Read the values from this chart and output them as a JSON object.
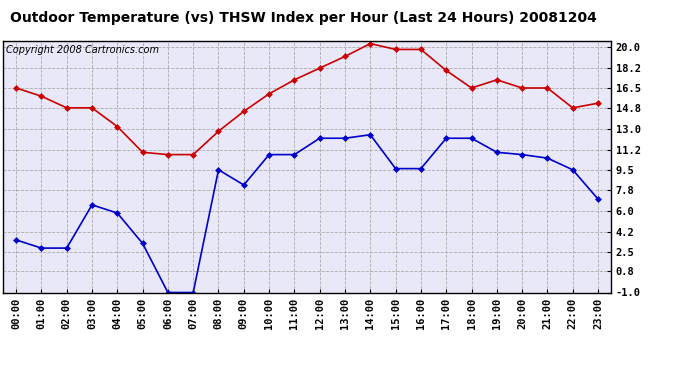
{
  "title": "Outdoor Temperature (vs) THSW Index per Hour (Last 24 Hours) 20081204",
  "copyright": "Copyright 2008 Cartronics.com",
  "hours": [
    "00:00",
    "01:00",
    "02:00",
    "03:00",
    "04:00",
    "05:00",
    "06:00",
    "07:00",
    "08:00",
    "09:00",
    "10:00",
    "11:00",
    "12:00",
    "13:00",
    "14:00",
    "15:00",
    "16:00",
    "17:00",
    "18:00",
    "19:00",
    "20:00",
    "21:00",
    "22:00",
    "23:00"
  ],
  "temp": [
    3.5,
    2.8,
    2.8,
    6.5,
    5.8,
    3.2,
    -1.0,
    -1.0,
    9.5,
    8.2,
    10.8,
    10.8,
    12.2,
    12.2,
    12.5,
    9.6,
    9.6,
    12.2,
    12.2,
    11.0,
    10.8,
    10.5,
    9.5,
    7.0
  ],
  "thsw": [
    16.5,
    15.8,
    14.8,
    14.8,
    13.2,
    11.0,
    10.8,
    10.8,
    12.8,
    14.5,
    16.0,
    17.2,
    18.2,
    19.2,
    20.3,
    19.8,
    19.8,
    18.0,
    16.5,
    17.2,
    16.5,
    16.5,
    14.8,
    15.2
  ],
  "ylim_min": -1.0,
  "ylim_max": 20.5,
  "yticks": [
    20.0,
    18.2,
    16.5,
    14.8,
    13.0,
    11.2,
    9.5,
    7.8,
    6.0,
    4.2,
    2.5,
    0.8,
    -1.0
  ],
  "temp_color": "#0000cc",
  "thsw_color": "#cc0000",
  "marker": "D",
  "marker_size": 3,
  "bg_color": "#ffffff",
  "plot_bg_color": "#e8e8f8",
  "grid_color": "#aaaaaa",
  "title_fontsize": 10,
  "copyright_fontsize": 7,
  "tick_fontsize": 7.5
}
